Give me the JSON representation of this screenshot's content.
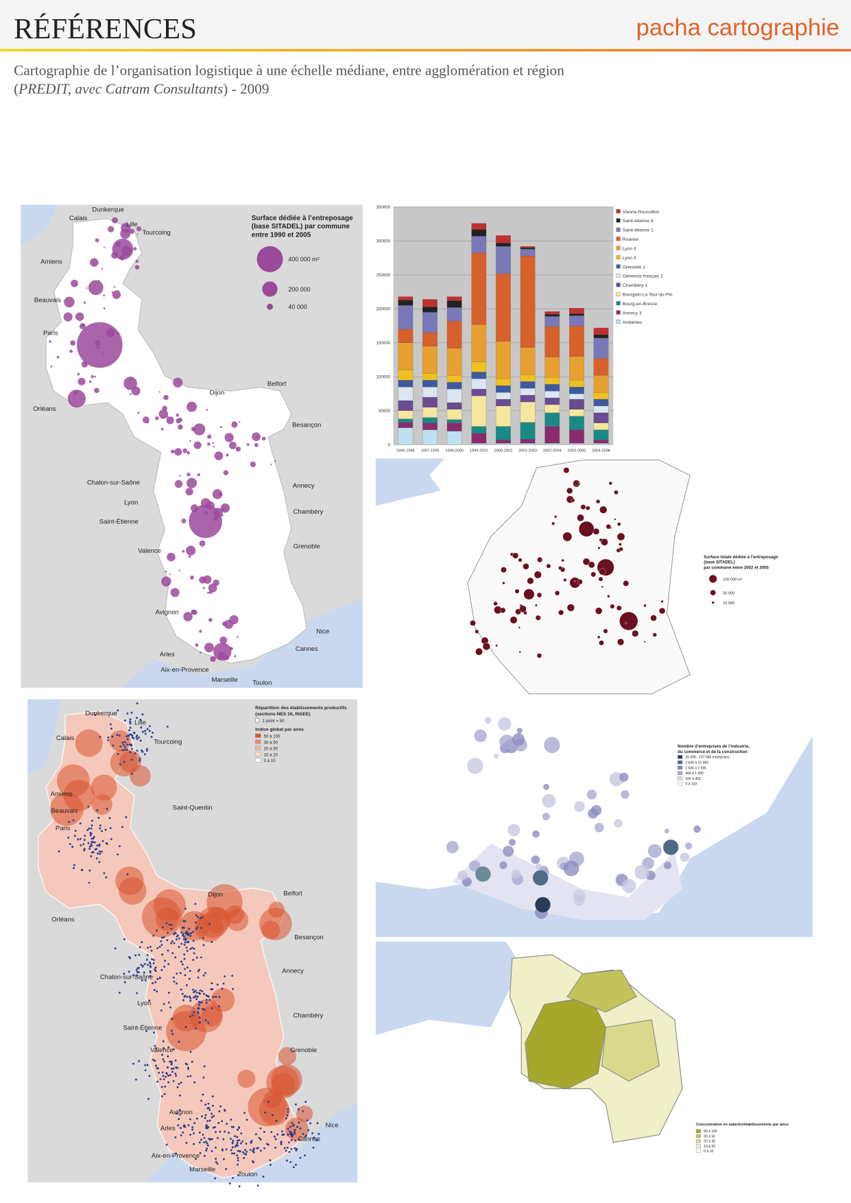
{
  "header": {
    "title": "RÉFÉRENCES",
    "brand": "pacha cartographie"
  },
  "subtitle": {
    "line1": "Cartographie de l’organisation logistique à une échelle médiane, entre agglomération et région",
    "line2": [
      {
        "text": "("
      },
      {
        "text": "PREDIT, avec Catram Consultants",
        "italic": true
      },
      {
        "text": ") - 2009"
      }
    ]
  },
  "maps": [
    {
      "legend_title": [
        "Surface dédiée à l’entreposage",
        "(base SITADEL) par commune",
        "entre 1990 et 2005"
      ],
      "legend_items": [
        "400 000 m²",
        "200 000",
        "40 000"
      ],
      "cities": [
        "Dunkerque",
        "Calais",
        "Lille",
        "Tourcoing",
        "Amiens",
        "Beauvais",
        "Paris",
        "Orléans",
        "Dijon",
        "Belfort",
        "Besançon",
        "Chalon-sur-Saône",
        "Annecy",
        "Lyon",
        "Chambéry",
        "Saint-Étienne",
        "Valence",
        "Grenoble",
        "Avignon",
        "Nice",
        "Arles",
        "Cannes",
        "Aix-en-Provence",
        "Marseille",
        "Toulon"
      ]
    },
    {
      "legend_title": [
        "Surface totale dédiée à l’entreposage",
        "(base SITADEL)",
        "par commune entre 2002 et 2005"
      ],
      "legend_items": [
        "100 000 m²",
        "50 000",
        "10 000"
      ]
    },
    {
      "legend_title": [
        "Répartition des établissements productifs",
        "(sections NES 16, INSEE)"
      ],
      "point_note": "1 point = 50",
      "legend_subtitle": "Indice global par aires",
      "legend_items": [
        "50 à 100",
        "30 à 50",
        "20 à 30",
        "10 à 20",
        "0 à 10"
      ],
      "cities": [
        "Dunkerque",
        "Lille",
        "Calais",
        "Tourcoing",
        "Amiens",
        "Saint-Quentin",
        "Beauvais",
        "Paris",
        "Dijon",
        "Belfort",
        "Orléans",
        "Besançon",
        "Annecy",
        "Chalon-sur-Saône",
        "Lyon",
        "Chambéry",
        "Saint-Étienne",
        "Grenoble",
        "Valence",
        "Avignon",
        "Nice",
        "Arles",
        "Cannes",
        "Aix-en-Provence",
        "Marseille",
        "Toulon"
      ]
    },
    {
      "legend_title": [
        "Nombre d’entreprises de l’industrie,",
        "du commerce et de la construction"
      ],
      "legend_items": [
        "25 006 - 107 980 entreprises",
        "2 606 à 12 083",
        "1 606 à 2 605",
        "404 à 1 605",
        "104 à 403",
        "0 à 103"
      ]
    },
    {
      "legend_title": [
        "Concentration en salariés/établissements par aires"
      ],
      "legend_items": [
        "50 à 100",
        "30 à 50",
        "20 à 30",
        "10 à 20",
        "0 à 10"
      ]
    }
  ],
  "chart_data": {
    "type": "bar",
    "stacked": true,
    "grid": true,
    "legend": "right",
    "categories": [
      "1996-1998",
      "1997-1999",
      "1998-2000",
      "1999-2001",
      "2000-2002",
      "2001-2003",
      "2002-2004",
      "2003-2005",
      "2004-2006"
    ],
    "ylim": [
      0,
      350000
    ],
    "yticks": [
      0,
      50000,
      100000,
      150000,
      200000,
      250000,
      300000,
      350000
    ],
    "series": [
      {
        "name": "Ambérieu",
        "color": "#bfe0ee",
        "values": [
          25000,
          22000,
          20000,
          2000,
          2000,
          2000,
          2000,
          2000,
          2000
        ]
      },
      {
        "name": "Annecy 3",
        "color": "#8a2b6e",
        "values": [
          8000,
          10000,
          12000,
          15000,
          5000,
          6000,
          25000,
          20000,
          5000
        ]
      },
      {
        "name": "Bourg-en-Bresse",
        "color": "#1a8a86",
        "values": [
          5000,
          8000,
          5000,
          10000,
          20000,
          25000,
          20000,
          20000,
          15000
        ]
      },
      {
        "name": "Bourgoin-La Tour-du-Pin",
        "color": "#f5e79e",
        "values": [
          12000,
          15000,
          15000,
          45000,
          30000,
          30000,
          12000,
          10000,
          10000
        ]
      },
      {
        "name": "Chambéry 1",
        "color": "#6a4c93",
        "values": [
          15000,
          15000,
          10000,
          10000,
          10000,
          10000,
          10000,
          15000,
          15000
        ]
      },
      {
        "name": "Genevois français 2",
        "color": "#dce6f0",
        "values": [
          20000,
          15000,
          20000,
          15000,
          10000,
          10000,
          10000,
          8000,
          10000
        ]
      },
      {
        "name": "Grenoble 1",
        "color": "#3d5aa0",
        "values": [
          10000,
          10000,
          10000,
          10000,
          10000,
          10000,
          10000,
          10000,
          10000
        ]
      },
      {
        "name": "Lyon 3",
        "color": "#f0c020",
        "values": [
          15000,
          10000,
          10000,
          15000,
          10000,
          10000,
          10000,
          10000,
          10000
        ]
      },
      {
        "name": "Lyon 4",
        "color": "#e8a030",
        "values": [
          40000,
          40000,
          40000,
          55000,
          55000,
          40000,
          30000,
          35000,
          25000
        ]
      },
      {
        "name": "Roanne",
        "color": "#d8602a",
        "values": [
          20000,
          20000,
          40000,
          105000,
          100000,
          135000,
          45000,
          45000,
          25000
        ]
      },
      {
        "name": "Saint-étienne 1",
        "color": "#7a78b8",
        "values": [
          35000,
          30000,
          20000,
          25000,
          40000,
          10000,
          15000,
          15000,
          30000
        ]
      },
      {
        "name": "Saint-étienne 4",
        "color": "#222222",
        "values": [
          8000,
          8000,
          10000,
          10000,
          5000,
          2000,
          3000,
          3000,
          5000
        ]
      },
      {
        "name": "Vienne-Roussillon",
        "color": "#c03030",
        "values": [
          5000,
          11000,
          6000,
          9000,
          11000,
          2000,
          4000,
          8000,
          10000
        ]
      }
    ]
  }
}
